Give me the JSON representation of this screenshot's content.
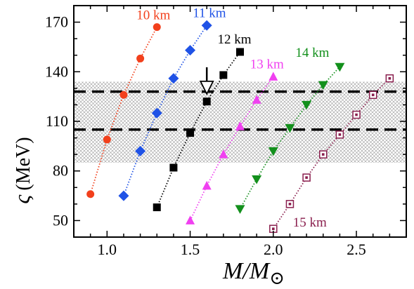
{
  "chart_data": {
    "type": "scatter",
    "xlabel": {
      "main": "M/M",
      "sub": "⊙"
    },
    "ylabel": {
      "greek": "ς",
      "unit": "(MeV)"
    },
    "xlim": [
      0.8,
      2.8
    ],
    "ylim": [
      40,
      180
    ],
    "xticks": [
      1.0,
      1.5,
      2.0,
      2.5
    ],
    "xtick_labels": [
      "1.0",
      "1.5",
      "2.0",
      "2.5"
    ],
    "yticks": [
      50,
      80,
      110,
      140,
      170
    ],
    "ytick_labels": [
      "50",
      "80",
      "110",
      "140",
      "170"
    ],
    "band": {
      "ymin": 85,
      "ymax": 134,
      "pattern": "crosshatch"
    },
    "reference_lines": [
      128,
      105
    ],
    "arrow_annotation": {
      "x": 1.6,
      "y": 130
    },
    "series": [
      {
        "name": "10 km",
        "color": "#f2401c",
        "marker": "circle",
        "x": [
          0.9,
          1.0,
          1.1,
          1.2,
          1.3
        ],
        "y": [
          66,
          99,
          126,
          148,
          167
        ]
      },
      {
        "name": "11 km",
        "color": "#1f52e6",
        "marker": "diamond",
        "x": [
          1.1,
          1.2,
          1.3,
          1.4,
          1.5,
          1.6
        ],
        "y": [
          65,
          92,
          115,
          136,
          153,
          168
        ]
      },
      {
        "name": "12 km",
        "color": "#000000",
        "marker": "square",
        "x": [
          1.3,
          1.4,
          1.5,
          1.6,
          1.7,
          1.8
        ],
        "y": [
          58,
          82,
          103,
          122,
          138,
          152
        ]
      },
      {
        "name": "13 km",
        "color": "#f040f0",
        "marker": "triangle-up",
        "x": [
          1.5,
          1.6,
          1.7,
          1.8,
          1.9,
          2.0
        ],
        "y": [
          50,
          71,
          90,
          107,
          123,
          137
        ]
      },
      {
        "name": "14 km",
        "color": "#13901c",
        "marker": "triangle-down",
        "x": [
          1.8,
          1.9,
          2.0,
          2.1,
          2.2,
          2.3,
          2.4
        ],
        "y": [
          57,
          75,
          92,
          106,
          120,
          132,
          143
        ]
      },
      {
        "name": "15 km",
        "color": "#8a1f4e",
        "marker": "square-dot",
        "x": [
          2.0,
          2.1,
          2.2,
          2.3,
          2.4,
          2.5,
          2.6,
          2.7
        ],
        "y": [
          45,
          60,
          76,
          90,
          102,
          114,
          126,
          136
        ]
      }
    ]
  }
}
